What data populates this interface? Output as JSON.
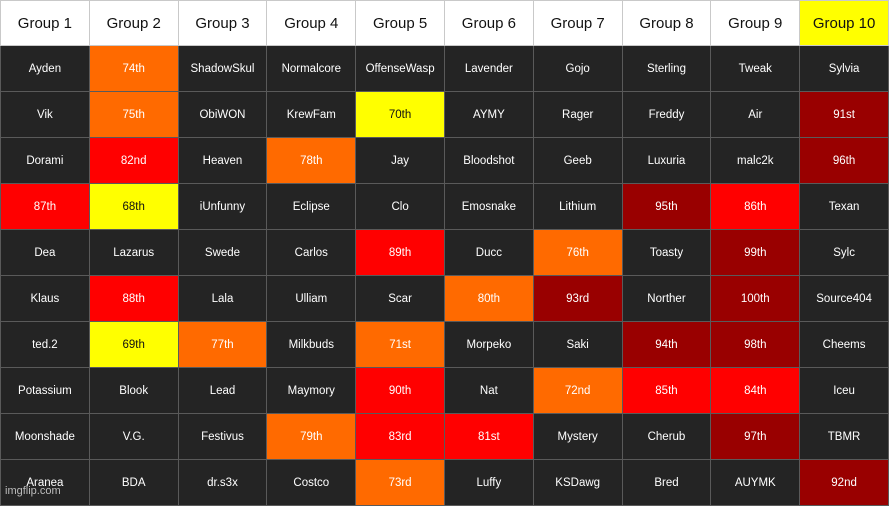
{
  "colors": {
    "header_bg": "#ffffff",
    "header_highlight": "#ffff00",
    "cell_dark": "#242424",
    "orange": "#ff6a00",
    "red": "#ff0000",
    "dark_red": "#990000",
    "yellow": "#ffff00"
  },
  "headers": [
    {
      "label": "Group 1",
      "color": "white"
    },
    {
      "label": "Group 2",
      "color": "white"
    },
    {
      "label": "Group 3",
      "color": "white"
    },
    {
      "label": "Group 4",
      "color": "white"
    },
    {
      "label": "Group 5",
      "color": "white"
    },
    {
      "label": "Group 6",
      "color": "white"
    },
    {
      "label": "Group 7",
      "color": "white"
    },
    {
      "label": "Group 8",
      "color": "white"
    },
    {
      "label": "Group 9",
      "color": "white"
    },
    {
      "label": "Group 10",
      "color": "yellow"
    }
  ],
  "rows": [
    [
      {
        "text": "Ayden",
        "color": "dark"
      },
      {
        "text": "74th",
        "color": "orange"
      },
      {
        "text": "ShadowSkul",
        "color": "dark"
      },
      {
        "text": "Normalcore",
        "color": "dark"
      },
      {
        "text": "OffenseWasp",
        "color": "dark"
      },
      {
        "text": "Lavender",
        "color": "dark"
      },
      {
        "text": "Gojo",
        "color": "dark"
      },
      {
        "text": "Sterling",
        "color": "dark"
      },
      {
        "text": "Tweak",
        "color": "dark"
      },
      {
        "text": "Sylvia",
        "color": "dark"
      }
    ],
    [
      {
        "text": "Vik",
        "color": "dark"
      },
      {
        "text": "75th",
        "color": "orange"
      },
      {
        "text": "ObiWON",
        "color": "dark"
      },
      {
        "text": "KrewFam",
        "color": "dark"
      },
      {
        "text": "70th",
        "color": "yellow"
      },
      {
        "text": "AYMY",
        "color": "dark"
      },
      {
        "text": "Rager",
        "color": "dark"
      },
      {
        "text": "Freddy",
        "color": "dark"
      },
      {
        "text": "Air",
        "color": "dark"
      },
      {
        "text": "91st",
        "color": "darkred"
      }
    ],
    [
      {
        "text": "Dorami",
        "color": "dark"
      },
      {
        "text": "82nd",
        "color": "red"
      },
      {
        "text": "Heaven",
        "color": "dark"
      },
      {
        "text": "78th",
        "color": "orange"
      },
      {
        "text": "Jay",
        "color": "dark"
      },
      {
        "text": "Bloodshot",
        "color": "dark"
      },
      {
        "text": "Geeb",
        "color": "dark"
      },
      {
        "text": "Luxuria",
        "color": "dark"
      },
      {
        "text": "malc2k",
        "color": "dark"
      },
      {
        "text": "96th",
        "color": "darkred"
      }
    ],
    [
      {
        "text": "87th",
        "color": "red"
      },
      {
        "text": "68th",
        "color": "yellow"
      },
      {
        "text": "iUnfunny",
        "color": "dark"
      },
      {
        "text": "Eclipse",
        "color": "dark"
      },
      {
        "text": "Clo",
        "color": "dark"
      },
      {
        "text": "Emosnake",
        "color": "dark"
      },
      {
        "text": "Lithium",
        "color": "dark"
      },
      {
        "text": "95th",
        "color": "darkred"
      },
      {
        "text": "86th",
        "color": "red"
      },
      {
        "text": "Texan",
        "color": "dark"
      }
    ],
    [
      {
        "text": "Dea",
        "color": "dark"
      },
      {
        "text": "Lazarus",
        "color": "dark"
      },
      {
        "text": "Swede",
        "color": "dark"
      },
      {
        "text": "Carlos",
        "color": "dark"
      },
      {
        "text": "89th",
        "color": "red"
      },
      {
        "text": "Ducc",
        "color": "dark"
      },
      {
        "text": "76th",
        "color": "orange"
      },
      {
        "text": "Toasty",
        "color": "dark"
      },
      {
        "text": "99th",
        "color": "darkred"
      },
      {
        "text": "Sylc",
        "color": "dark"
      }
    ],
    [
      {
        "text": "Klaus",
        "color": "dark"
      },
      {
        "text": "88th",
        "color": "red"
      },
      {
        "text": "Lala",
        "color": "dark"
      },
      {
        "text": "Ulliam",
        "color": "dark"
      },
      {
        "text": "Scar",
        "color": "dark"
      },
      {
        "text": "80th",
        "color": "orange"
      },
      {
        "text": "93rd",
        "color": "darkred"
      },
      {
        "text": "Norther",
        "color": "dark"
      },
      {
        "text": "100th",
        "color": "darkred"
      },
      {
        "text": "Source404",
        "color": "dark"
      }
    ],
    [
      {
        "text": "ted.2",
        "color": "dark"
      },
      {
        "text": "69th",
        "color": "yellow"
      },
      {
        "text": "77th",
        "color": "orange"
      },
      {
        "text": "Milkbuds",
        "color": "dark"
      },
      {
        "text": "71st",
        "color": "orange"
      },
      {
        "text": "Morpeko",
        "color": "dark"
      },
      {
        "text": "Saki",
        "color": "dark"
      },
      {
        "text": "94th",
        "color": "darkred"
      },
      {
        "text": "98th",
        "color": "darkred"
      },
      {
        "text": "Cheems",
        "color": "dark"
      }
    ],
    [
      {
        "text": "Potassium",
        "color": "dark"
      },
      {
        "text": "Blook",
        "color": "dark"
      },
      {
        "text": "Lead",
        "color": "dark"
      },
      {
        "text": "Maymory",
        "color": "dark"
      },
      {
        "text": "90th",
        "color": "red"
      },
      {
        "text": "Nat",
        "color": "dark"
      },
      {
        "text": "72nd",
        "color": "orange"
      },
      {
        "text": "85th",
        "color": "red"
      },
      {
        "text": "84th",
        "color": "red"
      },
      {
        "text": "Iceu",
        "color": "dark"
      }
    ],
    [
      {
        "text": "Moonshade",
        "color": "dark"
      },
      {
        "text": "V.G.",
        "color": "dark"
      },
      {
        "text": "Festivus",
        "color": "dark"
      },
      {
        "text": "79th",
        "color": "orange"
      },
      {
        "text": "83rd",
        "color": "red"
      },
      {
        "text": "81st",
        "color": "red"
      },
      {
        "text": "Mystery",
        "color": "dark"
      },
      {
        "text": "Cherub",
        "color": "dark"
      },
      {
        "text": "97th",
        "color": "darkred"
      },
      {
        "text": "TBMR",
        "color": "dark"
      }
    ],
    [
      {
        "text": "Aranea",
        "color": "dark"
      },
      {
        "text": "BDA",
        "color": "dark"
      },
      {
        "text": "dr.s3x",
        "color": "dark"
      },
      {
        "text": "Costco",
        "color": "dark"
      },
      {
        "text": "73rd",
        "color": "orange"
      },
      {
        "text": "Luffy",
        "color": "dark"
      },
      {
        "text": "KSDawg",
        "color": "dark"
      },
      {
        "text": "Bred",
        "color": "dark"
      },
      {
        "text": "AUYMK",
        "color": "dark"
      },
      {
        "text": "92nd",
        "color": "darkred"
      }
    ]
  ],
  "watermark": "imgflip.com"
}
